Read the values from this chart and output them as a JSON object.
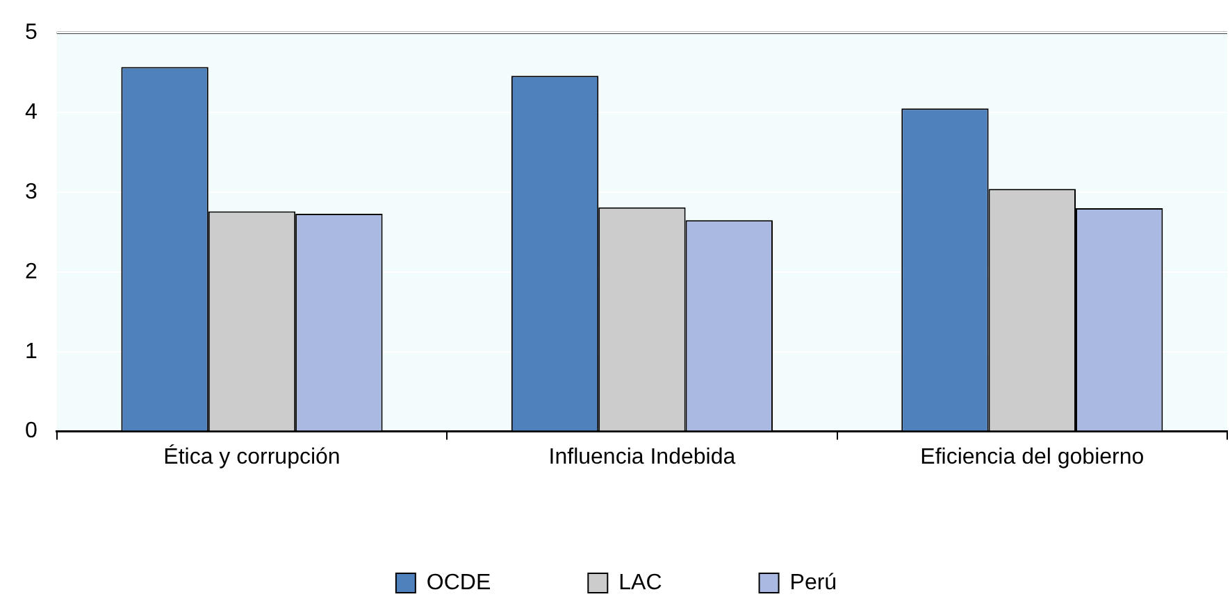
{
  "chart_data": {
    "type": "bar",
    "categories": [
      "Ética y corrupción",
      "Influencia Indebida",
      "Eficiencia del gobierno"
    ],
    "series": [
      {
        "name": "OCDE",
        "color": "#4f81bd",
        "values": [
          4.57,
          4.46,
          4.05
        ]
      },
      {
        "name": "LAC",
        "color": "#cccccc",
        "values": [
          2.76,
          2.81,
          3.04
        ]
      },
      {
        "name": "Perú",
        "color": "#a9b9e2",
        "values": [
          2.73,
          2.65,
          2.8
        ]
      }
    ],
    "ylim": [
      0,
      5
    ],
    "yticks": [
      0,
      1,
      2,
      3,
      4,
      5
    ],
    "grid": "y",
    "legend": "bottom"
  }
}
